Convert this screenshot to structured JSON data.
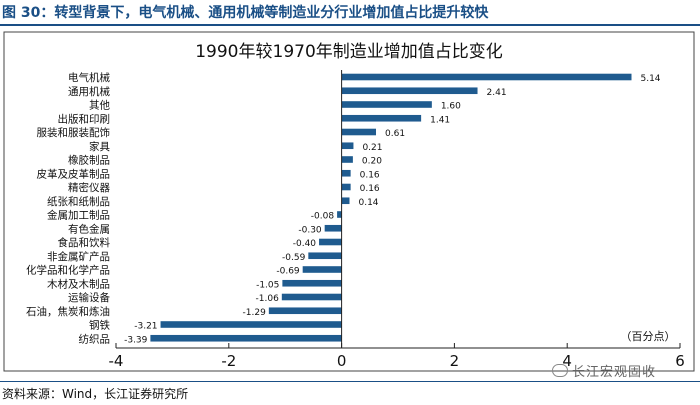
{
  "figure": {
    "label": "图 30：转型背景下，电气机械、通用机械等制造业分行业增加值占比提升较快",
    "source": "资料来源：Wind，长江证券研究所",
    "watermark": "长江宏观固收",
    "unit": "（百分点）"
  },
  "chart_data": {
    "type": "bar",
    "orientation": "horizontal",
    "title": "1990年较1970年制造业增加值占比变化",
    "xlabel": "",
    "ylabel": "",
    "xlim": [
      -4,
      6
    ],
    "xticks": [
      -4,
      -2,
      0,
      2,
      4,
      6
    ],
    "bar_color": "#1f5b8f",
    "categories": [
      "电气机械",
      "通用机械",
      "其他",
      "出版和印刷",
      "服装和服装配饰",
      "家具",
      "橡胶制品",
      "皮革及皮革制品",
      "精密仪器",
      "纸张和纸制品",
      "金属加工制品",
      "有色金属",
      "食品和饮料",
      "非金属矿产品",
      "化学品和化学产品",
      "木材及木制品",
      "运输设备",
      "石油，焦炭和炼油",
      "钢铁",
      "纺织品"
    ],
    "values": [
      5.14,
      2.41,
      1.6,
      1.41,
      0.61,
      0.21,
      0.2,
      0.16,
      0.16,
      0.14,
      -0.08,
      -0.3,
      -0.4,
      -0.59,
      -0.69,
      -1.05,
      -1.06,
      -1.29,
      -3.21,
      -3.39
    ],
    "value_labels": [
      "5.14",
      "2.41",
      "1.60",
      "1.41",
      "0.61",
      "0.21",
      "0.20",
      "0.16",
      "0.16",
      "0.14",
      "-0.08",
      "-0.30",
      "-0.40",
      "-0.59",
      "-0.69",
      "-1.05",
      "-1.06",
      "-1.29",
      "-3.21",
      "-3.39"
    ]
  }
}
